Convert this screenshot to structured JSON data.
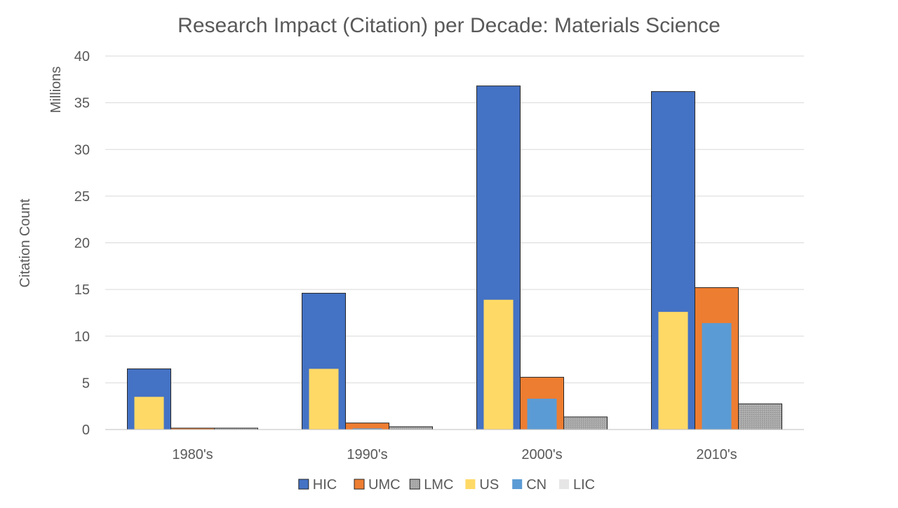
{
  "chart_data": {
    "type": "bar",
    "title": "Research Impact (Citation) per Decade: Materials Science",
    "xlabel": "",
    "ylabel": "Citation Count",
    "yunit_label": "Millions",
    "ylim": [
      0,
      40
    ],
    "yticks": [
      0,
      5,
      10,
      15,
      20,
      25,
      30,
      35,
      40
    ],
    "categories": [
      "1980's",
      "1990's",
      "2000's",
      "2010's"
    ],
    "series": [
      {
        "name": "HIC",
        "values": [
          6.5,
          14.6,
          36.8,
          36.2
        ],
        "color": "#4472C4"
      },
      {
        "name": "UMC",
        "values": [
          0.15,
          0.7,
          5.6,
          15.2
        ],
        "color": "#ED7D31"
      },
      {
        "name": "LMC",
        "values": [
          0.15,
          0.3,
          1.35,
          2.75
        ],
        "color": "#A5A5A5"
      },
      {
        "name": "US",
        "values": [
          3.5,
          6.5,
          13.9,
          12.6
        ],
        "color": "#FFD966"
      },
      {
        "name": "CN",
        "values": [
          0.02,
          0.12,
          3.3,
          11.4
        ],
        "color": "#5B9BD5"
      },
      {
        "name": "LIC",
        "values": [
          0.0,
          0.0,
          0.0,
          0.0
        ],
        "color": "#E7E6E6"
      }
    ],
    "overlay": [
      {
        "front": "US",
        "behind": "HIC"
      },
      {
        "front": "CN",
        "behind": "UMC"
      },
      {
        "front": "LIC",
        "behind": "LMC"
      }
    ],
    "legend_position": "bottom",
    "grid": true
  }
}
